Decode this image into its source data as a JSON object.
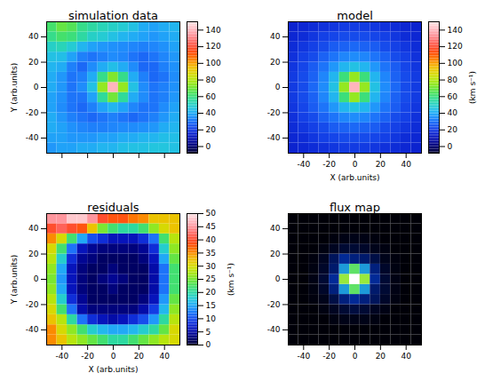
{
  "chart_data": [
    {
      "type": "heatmap",
      "title": "simulation data",
      "y_label": "Y (arb.units)",
      "tick_labels": "y",
      "xlim": [
        -52,
        52
      ],
      "ylim": [
        -52,
        52
      ],
      "xticks": [
        -40,
        -20,
        0,
        20,
        40
      ],
      "yticks": [
        -40,
        -20,
        0,
        20,
        40
      ],
      "x_bins": [
        -52,
        -44,
        -36,
        -28,
        -20,
        -12,
        -4,
        4,
        12,
        20,
        28,
        36,
        44,
        52
      ],
      "y_bins": [
        -52,
        -44,
        -36,
        -28,
        -20,
        -12,
        -4,
        4,
        12,
        20,
        28,
        36,
        44,
        52
      ],
      "values": [
        [
          36,
          38,
          38,
          40,
          40,
          42,
          42,
          44,
          45,
          45,
          46,
          46,
          45
        ],
        [
          38,
          38,
          36,
          36,
          36,
          38,
          38,
          40,
          40,
          42,
          42,
          44,
          44
        ],
        [
          40,
          38,
          35,
          33,
          32,
          32,
          33,
          34,
          34,
          35,
          36,
          40,
          42
        ],
        [
          40,
          36,
          32,
          30,
          28,
          30,
          32,
          30,
          28,
          30,
          32,
          36,
          40
        ],
        [
          38,
          34,
          30,
          28,
          32,
          38,
          42,
          38,
          33,
          30,
          30,
          34,
          38
        ],
        [
          38,
          35,
          30,
          30,
          38,
          56,
          70,
          56,
          40,
          34,
          30,
          32,
          36
        ],
        [
          40,
          36,
          30,
          34,
          45,
          75,
          140,
          75,
          45,
          34,
          30,
          32,
          35
        ],
        [
          40,
          36,
          30,
          32,
          40,
          58,
          72,
          58,
          40,
          32,
          28,
          30,
          34
        ],
        [
          42,
          40,
          32,
          28,
          34,
          40,
          44,
          40,
          34,
          28,
          28,
          32,
          35
        ],
        [
          45,
          44,
          38,
          32,
          30,
          32,
          34,
          33,
          30,
          28,
          30,
          33,
          36
        ],
        [
          50,
          52,
          48,
          42,
          38,
          36,
          35,
          34,
          33,
          32,
          33,
          35,
          38
        ],
        [
          58,
          62,
          60,
          55,
          50,
          48,
          45,
          42,
          40,
          38,
          36,
          38,
          40
        ],
        [
          62,
          68,
          65,
          58,
          55,
          52,
          50,
          48,
          45,
          40,
          38,
          40,
          42
        ]
      ],
      "colorbar": {
        "zlim": [
          -8,
          150
        ],
        "ticks": [
          0,
          20,
          40,
          60,
          80,
          100,
          120,
          140
        ]
      }
    },
    {
      "type": "heatmap",
      "title": "model",
      "x_label": "X (arb.units)",
      "xlim": [
        -52,
        52
      ],
      "ylim": [
        -52,
        52
      ],
      "xticks": [
        -40,
        -20,
        0,
        20,
        40
      ],
      "yticks": [
        -40,
        -20,
        0,
        20,
        40
      ],
      "x_bins": [
        -52,
        -44,
        -36,
        -28,
        -20,
        -12,
        -4,
        4,
        12,
        20,
        28,
        36,
        44,
        52
      ],
      "y_bins": [
        -52,
        -44,
        -36,
        -28,
        -20,
        -12,
        -4,
        4,
        12,
        20,
        28,
        36,
        44,
        52
      ],
      "values": [
        [
          15,
          16,
          17,
          18,
          19,
          20,
          20,
          20,
          19,
          18,
          17,
          16,
          15
        ],
        [
          16,
          17,
          19,
          21,
          22,
          23,
          23,
          23,
          22,
          21,
          19,
          17,
          16
        ],
        [
          17,
          19,
          21,
          23,
          26,
          27,
          28,
          27,
          26,
          23,
          21,
          19,
          17
        ],
        [
          18,
          21,
          23,
          27,
          30,
          33,
          34,
          33,
          30,
          27,
          23,
          21,
          18
        ],
        [
          19,
          22,
          26,
          30,
          36,
          42,
          45,
          42,
          36,
          30,
          26,
          22,
          19
        ],
        [
          20,
          23,
          27,
          33,
          42,
          60,
          75,
          60,
          42,
          33,
          27,
          23,
          20
        ],
        [
          20,
          23,
          28,
          34,
          45,
          75,
          140,
          75,
          45,
          34,
          28,
          23,
          20
        ],
        [
          20,
          23,
          27,
          33,
          42,
          60,
          75,
          60,
          42,
          33,
          27,
          23,
          20
        ],
        [
          19,
          22,
          26,
          30,
          36,
          42,
          45,
          42,
          36,
          30,
          26,
          22,
          19
        ],
        [
          18,
          21,
          23,
          27,
          30,
          33,
          34,
          33,
          30,
          27,
          23,
          21,
          18
        ],
        [
          17,
          19,
          21,
          23,
          26,
          27,
          28,
          27,
          26,
          23,
          21,
          19,
          17
        ],
        [
          16,
          17,
          19,
          21,
          22,
          23,
          23,
          23,
          22,
          21,
          19,
          17,
          16
        ],
        [
          15,
          16,
          17,
          18,
          19,
          20,
          20,
          20,
          19,
          18,
          17,
          16,
          15
        ]
      ],
      "colorbar": {
        "zlim": [
          -8,
          150
        ],
        "ticks": [
          0,
          20,
          40,
          60,
          80,
          100,
          120,
          140
        ],
        "label": "(km s⁻¹)"
      }
    },
    {
      "type": "heatmap",
      "title": "residuals",
      "x_label": "X (arb.units)",
      "y_label": "Y (arb.units)",
      "xlim": [
        -52,
        52
      ],
      "ylim": [
        -52,
        52
      ],
      "xticks": [
        -40,
        -20,
        0,
        20,
        40
      ],
      "yticks": [
        -40,
        -20,
        0,
        20,
        40
      ],
      "x_bins": [
        -52,
        -44,
        -36,
        -28,
        -20,
        -12,
        -4,
        4,
        12,
        20,
        28,
        36,
        44,
        52
      ],
      "y_bins": [
        -52,
        -44,
        -36,
        -28,
        -20,
        -12,
        -4,
        4,
        12,
        20,
        28,
        36,
        44,
        52
      ],
      "values": [
        [
          35,
          32,
          28,
          26,
          24,
          22,
          20,
          20,
          22,
          24,
          26,
          28,
          30
        ],
        [
          35,
          30,
          26,
          22,
          18,
          16,
          15,
          15,
          16,
          18,
          20,
          24,
          30
        ],
        [
          32,
          28,
          20,
          12,
          8,
          6,
          5,
          6,
          8,
          10,
          14,
          20,
          28
        ],
        [
          30,
          22,
          12,
          5,
          3,
          3,
          3,
          3,
          3,
          5,
          9,
          16,
          26
        ],
        [
          28,
          18,
          8,
          4,
          2,
          2,
          2,
          2,
          2,
          3,
          6,
          14,
          24
        ],
        [
          26,
          15,
          6,
          3,
          2,
          2,
          3,
          2,
          2,
          2,
          5,
          12,
          22
        ],
        [
          25,
          14,
          6,
          3,
          2,
          3,
          4,
          3,
          2,
          2,
          5,
          12,
          22
        ],
        [
          26,
          15,
          6,
          3,
          2,
          2,
          3,
          2,
          2,
          2,
          5,
          12,
          22
        ],
        [
          28,
          18,
          8,
          4,
          3,
          2,
          2,
          2,
          2,
          3,
          6,
          15,
          24
        ],
        [
          30,
          22,
          12,
          6,
          4,
          3,
          3,
          3,
          3,
          4,
          8,
          18,
          26
        ],
        [
          35,
          30,
          22,
          15,
          10,
          8,
          6,
          6,
          6,
          8,
          12,
          22,
          28
        ],
        [
          40,
          42,
          40,
          38,
          32,
          25,
          22,
          20,
          20,
          22,
          26,
          30,
          32
        ],
        [
          45,
          45,
          48,
          48,
          45,
          40,
          38,
          38,
          36,
          35,
          32,
          32,
          32
        ]
      ],
      "colorbar": {
        "zlim": [
          0,
          50
        ],
        "ticks": [
          0,
          5,
          10,
          15,
          20,
          25,
          30,
          35,
          40,
          45,
          50
        ],
        "label": "(km s⁻¹)"
      }
    },
    {
      "type": "heatmap",
      "title": "flux map",
      "xlim": [
        -52,
        52
      ],
      "ylim": [
        -52,
        52
      ],
      "xticks": [
        -40,
        -20,
        0,
        20,
        40
      ],
      "yticks": [
        -40,
        -20,
        0,
        20,
        40
      ],
      "x_bins": [
        -52,
        -44,
        -36,
        -28,
        -20,
        -12,
        -4,
        4,
        12,
        20,
        28,
        36,
        44,
        52
      ],
      "y_bins": [
        -52,
        -44,
        -36,
        -28,
        -20,
        -12,
        -4,
        4,
        12,
        20,
        28,
        36,
        44,
        52
      ],
      "values": [
        [
          0,
          0,
          0,
          0,
          0,
          0,
          0,
          0,
          0,
          0,
          0,
          0,
          0
        ],
        [
          0,
          0,
          0,
          0,
          0,
          0,
          0,
          0,
          0,
          0,
          0,
          0,
          0
        ],
        [
          0,
          0,
          0,
          0,
          3,
          5,
          5,
          5,
          3,
          0,
          0,
          0,
          0
        ],
        [
          0,
          0,
          0,
          3,
          8,
          12,
          14,
          12,
          8,
          4,
          0,
          0,
          0
        ],
        [
          0,
          0,
          2,
          6,
          15,
          22,
          25,
          22,
          18,
          10,
          3,
          0,
          0
        ],
        [
          0,
          0,
          3,
          10,
          22,
          45,
          60,
          45,
          20,
          12,
          4,
          0,
          0
        ],
        [
          0,
          0,
          4,
          12,
          25,
          65,
          100,
          65,
          25,
          12,
          4,
          0,
          0
        ],
        [
          0,
          0,
          3,
          10,
          20,
          45,
          60,
          45,
          22,
          10,
          3,
          0,
          0
        ],
        [
          0,
          0,
          2,
          8,
          18,
          25,
          22,
          20,
          15,
          6,
          2,
          0,
          0
        ],
        [
          0,
          0,
          0,
          3,
          8,
          12,
          12,
          10,
          6,
          3,
          0,
          0,
          0
        ],
        [
          0,
          0,
          0,
          0,
          2,
          4,
          5,
          4,
          2,
          0,
          0,
          0,
          0
        ],
        [
          0,
          0,
          0,
          0,
          0,
          0,
          0,
          0,
          0,
          0,
          0,
          0,
          0
        ],
        [
          0,
          0,
          0,
          0,
          0,
          0,
          0,
          0,
          0,
          0,
          0,
          0,
          0
        ]
      ]
    }
  ]
}
